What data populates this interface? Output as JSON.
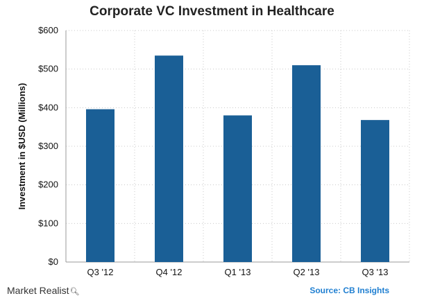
{
  "chart_data": {
    "type": "bar",
    "title": "Corporate VC Investment in Healthcare",
    "ylabel": "Investment in $USD (Millions)",
    "xlabel": "",
    "categories": [
      "Q3 '12",
      "Q4 '12",
      "Q1 '13",
      "Q2 '13",
      "Q3 '13"
    ],
    "values": [
      396,
      535,
      380,
      510,
      368
    ],
    "ylim": [
      0,
      600
    ],
    "yticks": [
      0,
      100,
      200,
      300,
      400,
      500,
      600
    ],
    "ytick_labels": [
      "$0",
      "$100",
      "$200",
      "$300",
      "$400",
      "$500",
      "$600"
    ],
    "grid": true,
    "bar_color": "#1a5f96"
  },
  "footer": {
    "brand": "Market Realist",
    "brand_icon": "magnifier-icon",
    "source": "Source: CB Insights"
  },
  "colors": {
    "source_text": "#1f7fd1",
    "grid": "#c8c8c8"
  }
}
